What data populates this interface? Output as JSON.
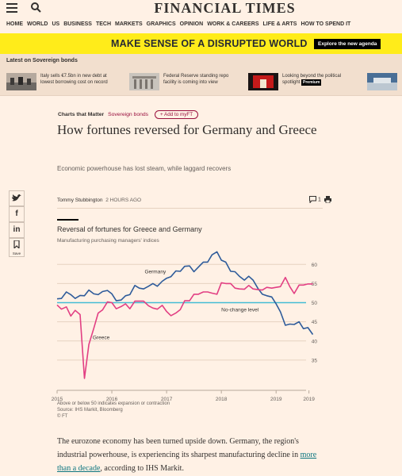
{
  "header": {
    "masthead": "FINANCIAL TIMES",
    "menu_icon": "hamburger-icon",
    "search_icon": "search-icon",
    "nav": [
      "HOME",
      "WORLD",
      "US",
      "BUSINESS",
      "TECH",
      "MARKETS",
      "GRAPHICS",
      "OPINION",
      "WORK & CAREERS",
      "LIFE & ARTS",
      "HOW TO SPEND IT"
    ]
  },
  "promo": {
    "text": "MAKE SENSE OF A DISRUPTED WORLD",
    "button": "Explore the new agenda",
    "bg": "#ffec1a"
  },
  "latest": {
    "title": "Latest on Sovereign bonds",
    "stories": [
      {
        "text": "Italy sells €7.5bn in new debt at lowest borrowing cost on record"
      },
      {
        "text": "Federal Reserve standing repo facility is coming into view"
      },
      {
        "text": "Looking beyond the political spotlight",
        "badge": "Premium"
      },
      {
        "text": ""
      }
    ]
  },
  "article": {
    "series": "Charts that Matter",
    "topic": "Sovereign bonds",
    "myft": "+ Add to myFT",
    "headline": "How fortunes reversed for Germany and Greece",
    "standfirst": "Economic powerhouse has lost steam, while laggard recovers",
    "author": "Tommy Stubbington",
    "time": "2 HOURS AGO",
    "comments": "1",
    "share": {
      "twitter": "twitter-icon",
      "facebook": "facebook-icon",
      "linkedin": "linkedin-icon",
      "save_label": "Save"
    },
    "body_before": "The eurozone economy has been turned upside down. Germany, the region's industrial powerhouse, is experiencing its sharpest manufacturing decline in ",
    "body_link": "more than a decade",
    "body_after": ", according to IHS Markit."
  },
  "chart_data": {
    "type": "line",
    "title": "Reversal of fortunes for Greece and Germany",
    "subtitle": "Manufacturing purchasing managers' indices",
    "x_ticks": [
      "2015",
      "2016",
      "2017",
      "2018",
      "2019",
      "2019"
    ],
    "y_ticks": [
      35,
      40,
      45,
      50,
      55,
      60
    ],
    "ylim": [
      30,
      64
    ],
    "reference": {
      "value": 50,
      "label": "No-change level",
      "color": "#44bcd4"
    },
    "series": [
      {
        "name": "Germany",
        "color": "#2e5b9a",
        "x": [
          2015.0,
          2015.08,
          2015.17,
          2015.25,
          2015.33,
          2015.42,
          2015.5,
          2015.58,
          2015.67,
          2015.75,
          2015.83,
          2015.92,
          2016.0,
          2016.08,
          2016.17,
          2016.25,
          2016.33,
          2016.42,
          2016.5,
          2016.58,
          2016.67,
          2016.75,
          2016.83,
          2016.92,
          2017.0,
          2017.08,
          2017.17,
          2017.25,
          2017.33,
          2017.42,
          2017.5,
          2017.58,
          2017.67,
          2017.75,
          2017.83,
          2017.92,
          2018.0,
          2018.08,
          2018.17,
          2018.25,
          2018.33,
          2018.42,
          2018.5,
          2018.58,
          2018.67,
          2018.75,
          2018.83,
          2018.92,
          2019.0,
          2019.08,
          2019.17,
          2019.25,
          2019.33,
          2019.42,
          2019.5,
          2019.58,
          2019.67
        ],
        "y": [
          51.0,
          51.1,
          52.8,
          52.1,
          51.1,
          51.9,
          51.8,
          53.3,
          52.3,
          52.1,
          52.9,
          53.2,
          52.3,
          50.5,
          50.7,
          51.8,
          52.1,
          54.5,
          53.8,
          53.6,
          54.3,
          55.0,
          54.3,
          55.6,
          56.4,
          56.8,
          58.3,
          58.2,
          59.5,
          59.6,
          58.1,
          59.3,
          60.6,
          60.6,
          62.5,
          63.3,
          61.1,
          60.6,
          58.2,
          58.1,
          56.9,
          55.9,
          56.9,
          55.9,
          53.7,
          52.2,
          51.8,
          51.5,
          49.7,
          47.6,
          44.1,
          44.4,
          44.3,
          45.0,
          43.2,
          43.5,
          41.7
        ]
      },
      {
        "name": "Greece",
        "color": "#e23f83",
        "x": [
          2015.0,
          2015.08,
          2015.17,
          2015.25,
          2015.33,
          2015.42,
          2015.5,
          2015.58,
          2015.67,
          2015.75,
          2015.83,
          2015.92,
          2016.0,
          2016.08,
          2016.17,
          2016.25,
          2016.33,
          2016.42,
          2016.5,
          2016.58,
          2016.67,
          2016.75,
          2016.83,
          2016.92,
          2017.0,
          2017.08,
          2017.17,
          2017.25,
          2017.33,
          2017.42,
          2017.5,
          2017.58,
          2017.67,
          2017.75,
          2017.83,
          2017.92,
          2018.0,
          2018.08,
          2018.17,
          2018.25,
          2018.33,
          2018.42,
          2018.5,
          2018.58,
          2018.67,
          2018.75,
          2018.83,
          2018.92,
          2019.0,
          2019.08,
          2019.17,
          2019.25,
          2019.33,
          2019.42,
          2019.5,
          2019.58,
          2019.67
        ],
        "y": [
          49.4,
          48.3,
          48.9,
          46.5,
          48.0,
          46.9,
          30.2,
          39.1,
          43.3,
          47.3,
          48.1,
          50.2,
          50.0,
          48.4,
          49.0,
          49.7,
          48.4,
          50.4,
          50.4,
          50.4,
          49.2,
          48.6,
          48.3,
          49.3,
          47.7,
          46.6,
          47.3,
          48.2,
          50.5,
          50.5,
          52.2,
          52.2,
          52.8,
          52.8,
          52.5,
          52.2,
          55.2,
          55.0,
          55.0,
          53.8,
          53.6,
          53.5,
          54.5,
          53.6,
          53.4,
          53.3,
          54.0,
          53.8,
          54.0,
          54.2,
          56.6,
          54.2,
          52.4,
          54.6,
          54.6,
          54.9,
          54.9
        ]
      }
    ],
    "grid": true,
    "footnote_1": "Above or below 50 indicates expansion or contraction",
    "footnote_2": "Source: IHS Markit, Bloomberg",
    "footnote_3": "© FT"
  }
}
